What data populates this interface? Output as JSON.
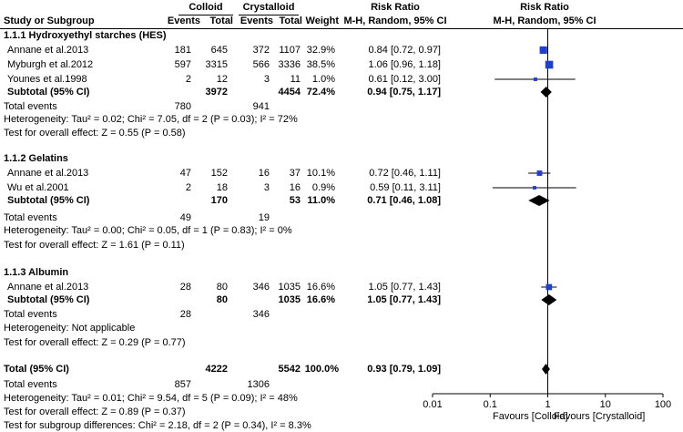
{
  "header": {
    "colloid": "Colloid",
    "crystalloid": "Crystalloid",
    "risk_ratio_left": "Risk Ratio",
    "risk_ratio_right": "Risk Ratio",
    "study_col": "Study or Subgroup",
    "events1": "Events",
    "total1": "Total",
    "events2": "Events",
    "total2": "Total",
    "weight": "Weight",
    "method_left": "M-H, Random, 95% CI",
    "method_right": "M-H, Random, 95% CI"
  },
  "groups": [
    {
      "title": "1.1.1 Hydroxyethyl starches (HES)",
      "studies": [
        {
          "name": "Annane et al.2013",
          "e1": "181",
          "t1": "645",
          "e2": "372",
          "t2": "1107",
          "weight": "32.9%",
          "ci": "0.84 [0.72, 0.97]"
        },
        {
          "name": "Myburgh et al.2012",
          "e1": "597",
          "t1": "3315",
          "e2": "566",
          "t2": "3336",
          "weight": "38.5%",
          "ci": "1.06 [0.96, 1.18]"
        },
        {
          "name": "Younes et al.1998",
          "e1": "2",
          "t1": "12",
          "e2": "3",
          "t2": "11",
          "weight": "1.0%",
          "ci": "0.61 [0.12, 3.00]"
        }
      ],
      "subtotal": {
        "label": "Subtotal (95% CI)",
        "t1": "3972",
        "t2": "4454",
        "weight": "72.4%",
        "ci": "0.94 [0.75, 1.17]"
      },
      "total_events": {
        "label": "Total events",
        "e1": "780",
        "e2": "941"
      },
      "heterogeneity": "Heterogeneity: Tau² = 0.02; Chi² = 7.05, df = 2 (P = 0.03); I² = 72%",
      "overall": "Test for overall effect: Z = 0.55 (P = 0.58)"
    },
    {
      "title": "1.1.2 Gelatins",
      "studies": [
        {
          "name": "Annane et al.2013",
          "e1": "47",
          "t1": "152",
          "e2": "16",
          "t2": "37",
          "weight": "10.1%",
          "ci": "0.72 [0.46, 1.11]"
        },
        {
          "name": "Wu et al.2001",
          "e1": "2",
          "t1": "18",
          "e2": "3",
          "t2": "16",
          "weight": "0.9%",
          "ci": "0.59 [0.11, 3.11]"
        }
      ],
      "subtotal": {
        "label": "Subtotal (95% CI)",
        "t1": "170",
        "t2": "53",
        "weight": "11.0%",
        "ci": "0.71 [0.46, 1.08]"
      },
      "total_events": {
        "label": "Total events",
        "e1": "49",
        "e2": "19"
      },
      "heterogeneity": "Heterogeneity: Tau² = 0.00; Chi² = 0.05, df = 1 (P = 0.83); I² = 0%",
      "overall": "Test for overall effect: Z = 1.61 (P = 0.11)"
    },
    {
      "title": "1.1.3 Albumin",
      "studies": [
        {
          "name": "Annane et al.2013",
          "e1": "28",
          "t1": "80",
          "e2": "346",
          "t2": "1035",
          "weight": "16.6%",
          "ci": "1.05 [0.77, 1.43]"
        }
      ],
      "subtotal": {
        "label": "Subtotal (95% CI)",
        "t1": "80",
        "t2": "1035",
        "weight": "16.6%",
        "ci": "1.05 [0.77, 1.43]"
      },
      "total_events": {
        "label": "Total events",
        "e1": "28",
        "e2": "346"
      },
      "heterogeneity": "Heterogeneity: Not applicable",
      "overall": "Test for overall effect: Z = 0.29 (P = 0.77)"
    }
  ],
  "total": {
    "label": "Total (95% CI)",
    "t1": "4222",
    "t2": "5542",
    "weight": "100.0%",
    "ci": "0.93 [0.79, 1.09]"
  },
  "total_events": {
    "label": "Total events",
    "e1": "857",
    "e2": "1306"
  },
  "heterogeneity": "Heterogeneity: Tau² = 0.01; Chi² = 9.54, df = 5 (P = 0.09); I² = 48%",
  "overall": "Test for overall effect: Z = 0.89 (P = 0.37)",
  "subgroup_test": "Test for subgroup differences: Chi² = 2.18, df = 2 (P = 0.34), I² = 8.3%",
  "axis": {
    "favours_left": "Favours [Colloid]",
    "favours_right": "Favours [Crystalloid]"
  },
  "colors": {
    "study_marker": "#1f3fd0",
    "line": "#000000"
  },
  "chart_data": {
    "type": "forest",
    "x_scale": "log",
    "xlim": [
      0.01,
      100
    ],
    "x_ticks": [
      0.01,
      0.1,
      1,
      10,
      100
    ],
    "x_tick_labels": [
      "0.01",
      "0.1",
      "1",
      "10",
      "100"
    ],
    "reference_line": 1,
    "studies": [
      {
        "name": "Annane et al.2013",
        "rr": 0.84,
        "lo": 0.72,
        "hi": 0.97,
        "weight": 32.9
      },
      {
        "name": "Myburgh et al.2012",
        "rr": 1.06,
        "lo": 0.96,
        "hi": 1.18,
        "weight": 38.5
      },
      {
        "name": "Younes et al.1998",
        "rr": 0.61,
        "lo": 0.12,
        "hi": 3.0,
        "weight": 1.0
      },
      {
        "name": "Annane et al.2013",
        "rr": 0.72,
        "lo": 0.46,
        "hi": 1.11,
        "weight": 10.1
      },
      {
        "name": "Wu et al.2001",
        "rr": 0.59,
        "lo": 0.11,
        "hi": 3.11,
        "weight": 0.9
      },
      {
        "name": "Annane et al.2013",
        "rr": 1.05,
        "lo": 0.77,
        "hi": 1.43,
        "weight": 16.6
      }
    ],
    "subtotals": [
      {
        "name": "1.1.1 Hydroxyethyl starches (HES)",
        "rr": 0.94,
        "lo": 0.75,
        "hi": 1.17
      },
      {
        "name": "1.1.2 Gelatins",
        "rr": 0.71,
        "lo": 0.46,
        "hi": 1.08
      },
      {
        "name": "1.1.3 Albumin",
        "rr": 1.05,
        "lo": 0.77,
        "hi": 1.43
      }
    ],
    "overall": {
      "name": "Total (95% CI)",
      "rr": 0.93,
      "lo": 0.79,
      "hi": 1.09
    }
  }
}
